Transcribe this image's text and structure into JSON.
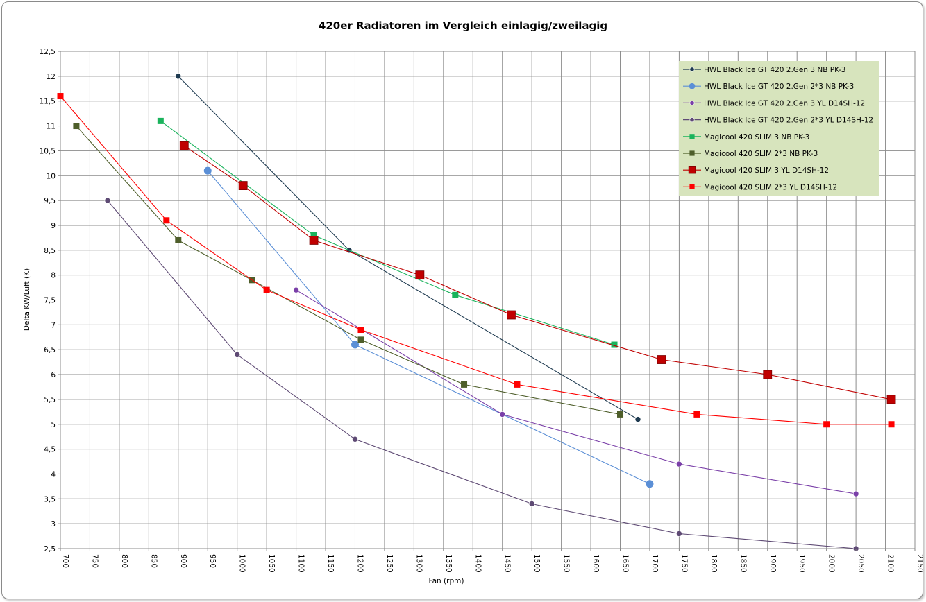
{
  "chart_data": {
    "type": "line",
    "title": "420er Radiatoren im Vergleich einlagig/zweilagig",
    "xlabel": "Fan (rpm)",
    "ylabel": "Delta KW/Luft (K)",
    "xlim": [
      700,
      2150
    ],
    "ylim": [
      2.5,
      12.5
    ],
    "xticks": [
      "700",
      "750",
      "800",
      "850",
      "900",
      "950",
      "1000",
      "1050",
      "1100",
      "1150",
      "1200",
      "1250",
      "1300",
      "1350",
      "1400",
      "1450",
      "1500",
      "1550",
      "1600",
      "1650",
      "1700",
      "1750",
      "1800",
      "1850",
      "1900",
      "1950",
      "2000",
      "2050",
      "2100",
      "2150"
    ],
    "yticks": [
      "2,5",
      "3",
      "3,5",
      "4",
      "4,5",
      "5",
      "5,5",
      "6",
      "6,5",
      "7",
      "7,5",
      "8",
      "8,5",
      "9",
      "9,5",
      "10",
      "10,5",
      "11",
      "11,5",
      "12",
      "12,5"
    ],
    "grid": true,
    "legend_position": "top-right",
    "series": [
      {
        "name": "HWL Black Ice GT 420 2.Gen 3 NB PK-3",
        "color": "#1e3a50",
        "marker": "circle",
        "size": "small",
        "x": [
          900,
          1190,
          1680
        ],
        "y": [
          12.0,
          8.5,
          5.1
        ]
      },
      {
        "name": "HWL Black Ice GT 420 2.Gen 2*3 NB PK-3",
        "color": "#5b8fd6",
        "marker": "circle",
        "size": "large",
        "x": [
          950,
          1200,
          1700
        ],
        "y": [
          10.1,
          6.6,
          3.8
        ]
      },
      {
        "name": "HWL Black Ice GT 420 2.Gen 3 YL D14SH-12",
        "color": "#7a3fa8",
        "marker": "circle",
        "size": "small",
        "x": [
          1100,
          1450,
          1750,
          2050
        ],
        "y": [
          7.7,
          5.2,
          4.2,
          3.6
        ]
      },
      {
        "name": "HWL Black Ice GT 420 2.Gen 2*3 YL D14SH-12",
        "color": "#5e4a74",
        "marker": "circle",
        "size": "small",
        "x": [
          780,
          1000,
          1200,
          1500,
          1750,
          2050
        ],
        "y": [
          9.5,
          6.4,
          4.7,
          3.4,
          2.8,
          2.5
        ]
      },
      {
        "name": "Magicool 420 SLIM 3 NB PK-3",
        "color": "#1ab35c",
        "marker": "square",
        "size": "small",
        "x": [
          870,
          1130,
          1370,
          1640
        ],
        "y": [
          11.1,
          8.8,
          7.6,
          6.6
        ]
      },
      {
        "name": "Magicool 420 SLIM 2*3 NB PK-3",
        "color": "#4e5e2a",
        "marker": "square",
        "size": "small",
        "x": [
          727,
          900,
          1025,
          1210,
          1385,
          1650
        ],
        "y": [
          11.0,
          8.7,
          7.9,
          6.7,
          5.8,
          5.2
        ]
      },
      {
        "name": "Magicool 420 SLIM 3 YL D14SH-12",
        "color": "#c00000",
        "marker": "square",
        "size": "large",
        "x": [
          910,
          1010,
          1130,
          1310,
          1465,
          1720,
          1900,
          2110
        ],
        "y": [
          10.6,
          9.8,
          8.7,
          8.0,
          7.2,
          6.3,
          6.0,
          5.5
        ]
      },
      {
        "name": "Magicool 420 SLIM 2*3 YL D14SH-12",
        "color": "#ff0000",
        "marker": "square",
        "size": "small",
        "x": [
          700,
          880,
          1050,
          1210,
          1475,
          1780,
          2000,
          2110
        ],
        "y": [
          11.6,
          9.1,
          7.7,
          6.9,
          5.8,
          5.2,
          5.0,
          5.0
        ]
      }
    ]
  }
}
